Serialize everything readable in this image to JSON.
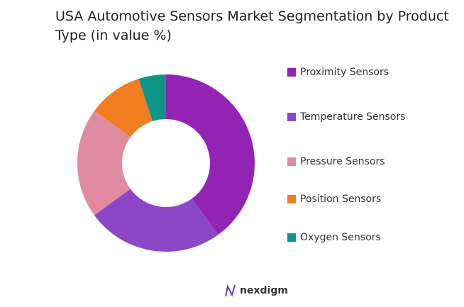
{
  "chart_data": {
    "type": "donut",
    "title": "USA Automotive Sensors Market Segmentation by Product Type (in value %)",
    "categories": [
      "Proximity Sensors",
      "Temperature Sensors",
      "Pressure Sensors",
      "Position Sensors",
      "Oxygen Sensors"
    ],
    "values": [
      40,
      25,
      20,
      10,
      5
    ],
    "colors": [
      "#9324b3",
      "#8b47c6",
      "#e08ba1",
      "#f17f22",
      "#10958a"
    ],
    "legend": "right"
  },
  "footer": {
    "brand": "nexdigm"
  }
}
